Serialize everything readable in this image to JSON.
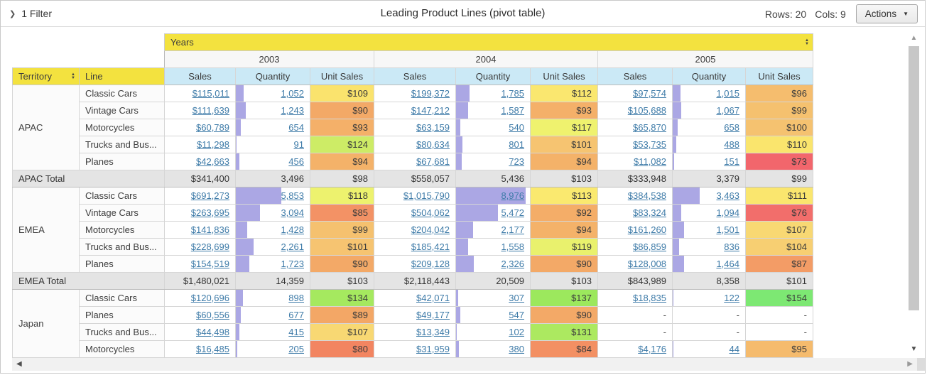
{
  "toolbar": {
    "filter_label": "1 Filter",
    "title": "Leading Product Lines (pivot table)",
    "rows_label": "Rows: 20",
    "cols_label": "Cols: 9",
    "actions_label": "Actions"
  },
  "pivot": {
    "col_dim": "Years",
    "row_dims": [
      "Territory",
      "Line"
    ],
    "years": [
      "2003",
      "2004",
      "2005"
    ],
    "measures": [
      "Sales",
      "Quantity",
      "Unit Sales"
    ],
    "groups": [
      {
        "territory": "APAC",
        "rows": [
          {
            "line": "Classic Cars",
            "cells": [
              {
                "sales": "$115,011",
                "qty": "1,052",
                "unit": "$109",
                "color": "#FAE36D"
              },
              {
                "sales": "$199,372",
                "qty": "1,785",
                "unit": "$112",
                "color": "#FAE76F"
              },
              {
                "sales": "$97,574",
                "qty": "1,015",
                "unit": "$96",
                "color": "#F5BD6E"
              }
            ]
          },
          {
            "line": "Vintage Cars",
            "cells": [
              {
                "sales": "$111,639",
                "qty": "1,243",
                "unit": "$90",
                "color": "#F3A967"
              },
              {
                "sales": "$147,212",
                "qty": "1,587",
                "unit": "$93",
                "color": "#F4B069"
              },
              {
                "sales": "$105,688",
                "qty": "1,067",
                "unit": "$99",
                "color": "#F5C16F"
              }
            ]
          },
          {
            "line": "Motorcycles",
            "cells": [
              {
                "sales": "$60,789",
                "qty": "654",
                "unit": "$93",
                "color": "#F4B069"
              },
              {
                "sales": "$63,159",
                "qty": "540",
                "unit": "$117",
                "color": "#EFF26E"
              },
              {
                "sales": "$65,870",
                "qty": "658",
                "unit": "$100",
                "color": "#F5C270"
              }
            ]
          },
          {
            "line": "Trucks and Bus...",
            "cells": [
              {
                "sales": "$11,298",
                "qty": "91",
                "unit": "$124",
                "color": "#CDEC66"
              },
              {
                "sales": "$80,634",
                "qty": "801",
                "unit": "$101",
                "color": "#F6C471"
              },
              {
                "sales": "$53,735",
                "qty": "488",
                "unit": "$110",
                "color": "#FAE56D"
              }
            ]
          },
          {
            "line": "Planes",
            "cells": [
              {
                "sales": "$42,663",
                "qty": "456",
                "unit": "$94",
                "color": "#F4B269"
              },
              {
                "sales": "$67,681",
                "qty": "723",
                "unit": "$94",
                "color": "#F4B269"
              },
              {
                "sales": "$11,082",
                "qty": "151",
                "unit": "$73",
                "color": "#F2666C"
              }
            ]
          }
        ],
        "total": {
          "label": "APAC Total",
          "cells": [
            {
              "sales": "$341,400",
              "qty": "3,496",
              "unit": "$98"
            },
            {
              "sales": "$558,057",
              "qty": "5,436",
              "unit": "$103"
            },
            {
              "sales": "$333,948",
              "qty": "3,379",
              "unit": "$99"
            }
          ]
        }
      },
      {
        "territory": "EMEA",
        "rows": [
          {
            "line": "Classic Cars",
            "cells": [
              {
                "sales": "$691,273",
                "qty": "5,853",
                "unit": "$118",
                "color": "#EDF26E"
              },
              {
                "sales": "$1,015,790",
                "qty": "8,976",
                "unit": "$113",
                "color": "#FAE96F"
              },
              {
                "sales": "$384,538",
                "qty": "3,463",
                "unit": "$111",
                "color": "#FAE66E"
              }
            ]
          },
          {
            "line": "Vintage Cars",
            "cells": [
              {
                "sales": "$263,695",
                "qty": "3,094",
                "unit": "$85",
                "color": "#F39265"
              },
              {
                "sales": "$504,062",
                "qty": "5,472",
                "unit": "$92",
                "color": "#F4AD68"
              },
              {
                "sales": "$83,324",
                "qty": "1,094",
                "unit": "$76",
                "color": "#F26E6B"
              }
            ]
          },
          {
            "line": "Motorcycles",
            "cells": [
              {
                "sales": "$141,836",
                "qty": "1,428",
                "unit": "$99",
                "color": "#F5C16F"
              },
              {
                "sales": "$204,042",
                "qty": "2,177",
                "unit": "$94",
                "color": "#F4B269"
              },
              {
                "sales": "$161,260",
                "qty": "1,501",
                "unit": "$107",
                "color": "#F8D873"
              }
            ]
          },
          {
            "line": "Trucks and Bus...",
            "cells": [
              {
                "sales": "$228,699",
                "qty": "2,261",
                "unit": "$101",
                "color": "#F6C471"
              },
              {
                "sales": "$185,421",
                "qty": "1,558",
                "unit": "$119",
                "color": "#E9F16D"
              },
              {
                "sales": "$86,859",
                "qty": "836",
                "unit": "$104",
                "color": "#F7CF72"
              }
            ]
          },
          {
            "line": "Planes",
            "cells": [
              {
                "sales": "$154,519",
                "qty": "1,723",
                "unit": "$90",
                "color": "#F3A967"
              },
              {
                "sales": "$209,128",
                "qty": "2,326",
                "unit": "$90",
                "color": "#F3A967"
              },
              {
                "sales": "$128,008",
                "qty": "1,464",
                "unit": "$87",
                "color": "#F39C66"
              }
            ]
          }
        ],
        "total": {
          "label": "EMEA Total",
          "cells": [
            {
              "sales": "$1,480,021",
              "qty": "14,359",
              "unit": "$103"
            },
            {
              "sales": "$2,118,443",
              "qty": "20,509",
              "unit": "$103"
            },
            {
              "sales": "$843,989",
              "qty": "8,358",
              "unit": "$101"
            }
          ]
        }
      },
      {
        "territory": "Japan",
        "rows": [
          {
            "line": "Classic Cars",
            "cells": [
              {
                "sales": "$120,696",
                "qty": "898",
                "unit": "$134",
                "color": "#A5E95F"
              },
              {
                "sales": "$42,071",
                "qty": "307",
                "unit": "$137",
                "color": "#9CE85D"
              },
              {
                "sales": "$18,835",
                "qty": "122",
                "unit": "$154",
                "color": "#7DE873"
              }
            ]
          },
          {
            "line": "Planes",
            "cells": [
              {
                "sales": "$60,556",
                "qty": "677",
                "unit": "$89",
                "color": "#F3A766"
              },
              {
                "sales": "$49,177",
                "qty": "547",
                "unit": "$90",
                "color": "#F3A967"
              },
              {
                "sales": "-",
                "qty": "-",
                "unit": "-",
                "color": ""
              }
            ]
          },
          {
            "line": "Trucks and Bus...",
            "cells": [
              {
                "sales": "$44,498",
                "qty": "415",
                "unit": "$107",
                "color": "#F8D873"
              },
              {
                "sales": "$13,349",
                "qty": "102",
                "unit": "$131",
                "color": "#ACE960"
              },
              {
                "sales": "-",
                "qty": "-",
                "unit": "-",
                "color": ""
              }
            ]
          },
          {
            "line": "Motorcycles",
            "cells": [
              {
                "sales": "$16,485",
                "qty": "205",
                "unit": "$80",
                "color": "#F28561"
              },
              {
                "sales": "$31,959",
                "qty": "380",
                "unit": "$84",
                "color": "#F39063"
              },
              {
                "sales": "$4,176",
                "qty": "44",
                "unit": "$95",
                "color": "#F5BB6D"
              }
            ]
          }
        ]
      }
    ]
  }
}
